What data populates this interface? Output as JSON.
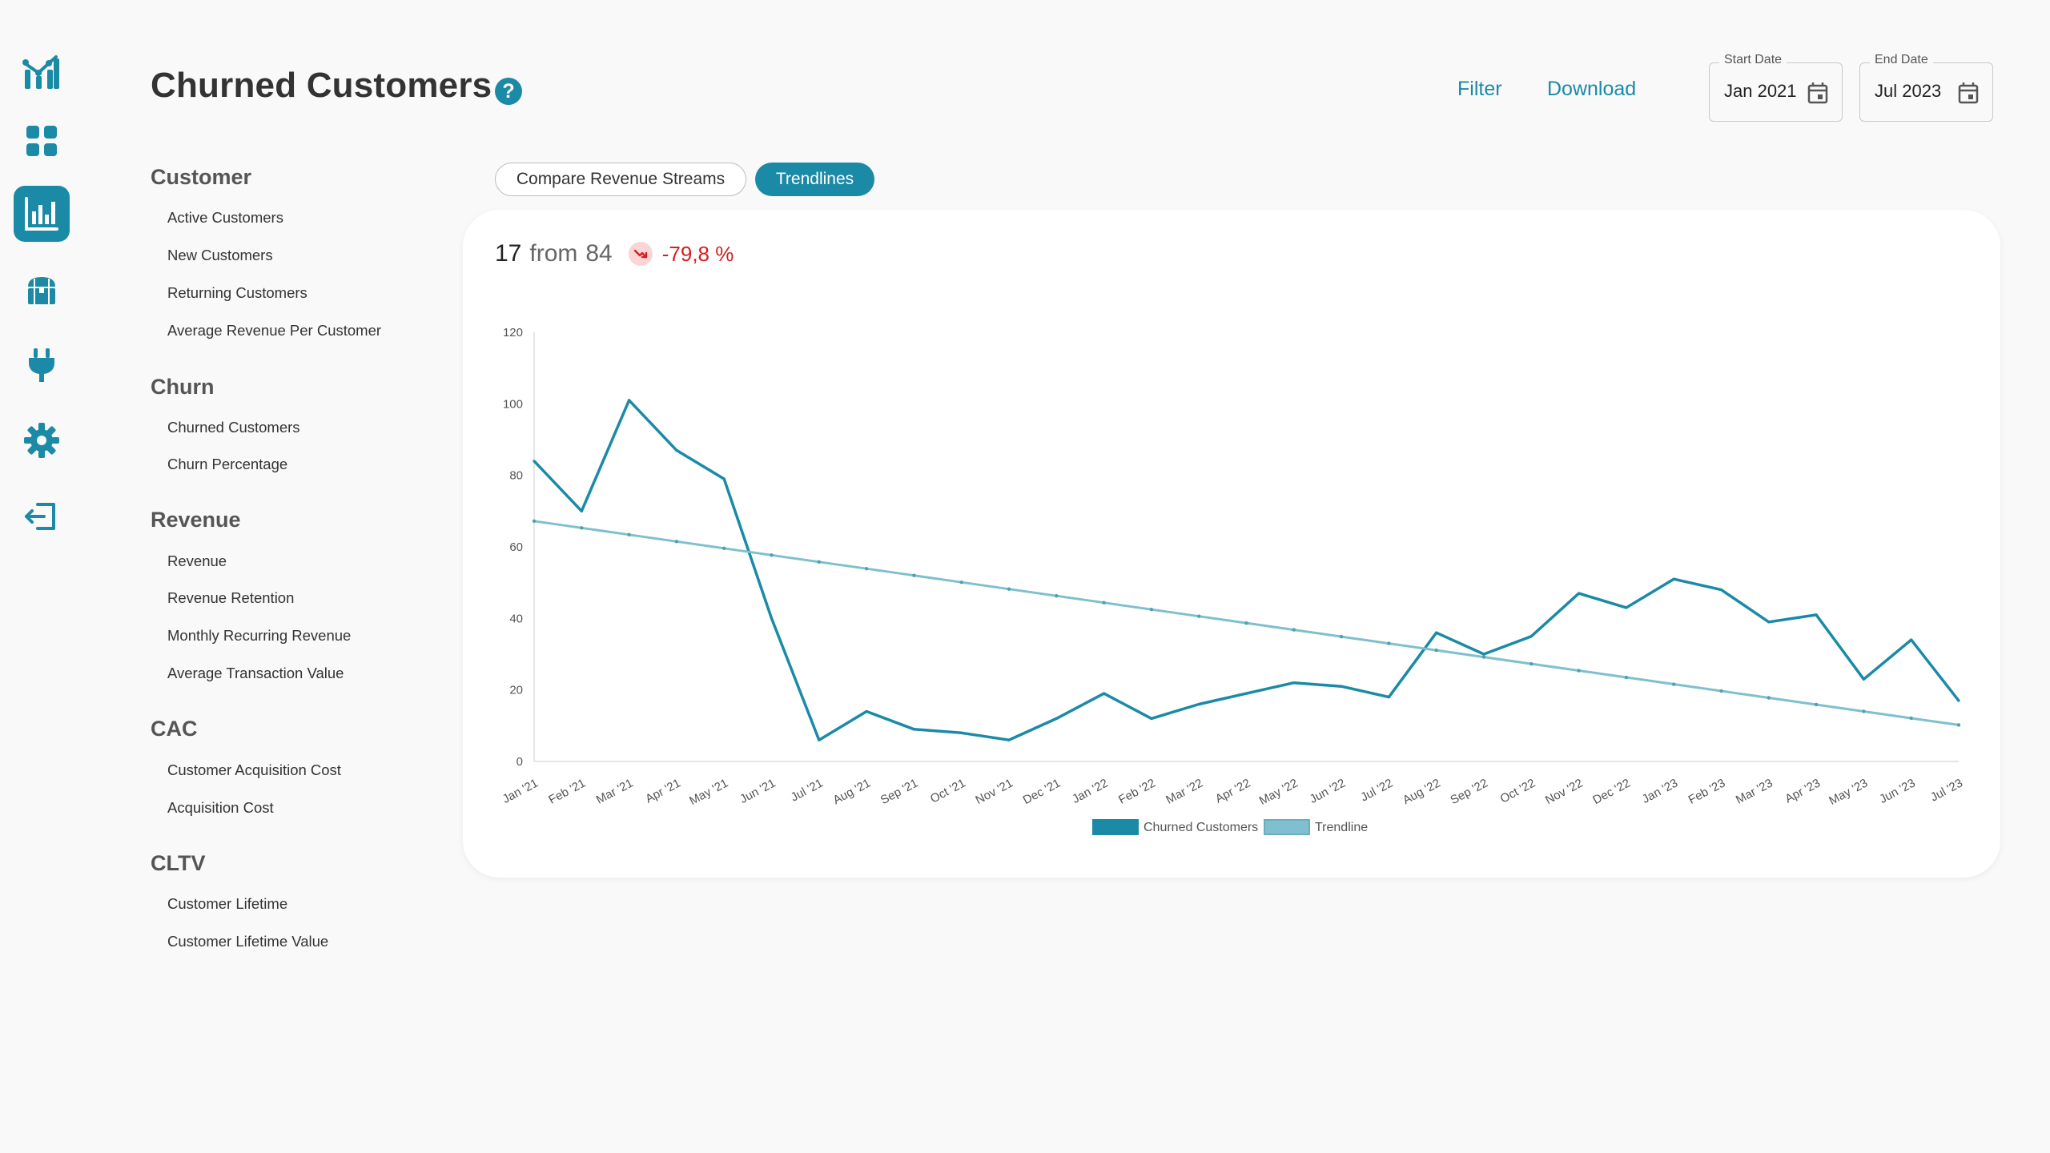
{
  "colors": {
    "accent": "#1a8aa6",
    "trend": "#7fbfcf",
    "negative": "#d32020"
  },
  "rail": {
    "items": [
      {
        "icon": "logo-icon",
        "active": false
      },
      {
        "icon": "dashboard-icon",
        "active": false
      },
      {
        "icon": "bar-chart-icon",
        "active": true
      },
      {
        "icon": "treasure-chest-icon",
        "active": false
      },
      {
        "icon": "plug-icon",
        "active": false
      },
      {
        "icon": "gear-icon",
        "active": false
      },
      {
        "icon": "logout-icon",
        "active": false
      }
    ]
  },
  "header": {
    "title": "Churned Customers",
    "help_icon": "?",
    "filter_label": "Filter",
    "download_label": "Download",
    "start_date": {
      "label": "Start Date",
      "value": "Jan 2021"
    },
    "end_date": {
      "label": "End Date",
      "value": "Jul 2023"
    }
  },
  "nav": {
    "customer": {
      "title": "Customer",
      "items": [
        "Active Customers",
        "New Customers",
        "Returning Customers",
        "Average Revenue Per Customer"
      ]
    },
    "churn": {
      "title": "Churn",
      "items": [
        "Churned Customers",
        "Churn Percentage"
      ]
    },
    "revenue": {
      "title": "Revenue",
      "items": [
        "Revenue",
        "Revenue Retention",
        "Monthly Recurring Revenue",
        "Average Transaction Value"
      ]
    },
    "cac": {
      "title": "CAC",
      "items": [
        "Customer Acquisition Cost",
        "Acquisition Cost"
      ]
    },
    "cltv": {
      "title": "CLTV",
      "items": [
        "Customer Lifetime",
        "Customer Lifetime Value"
      ]
    }
  },
  "tabs": {
    "compare_label": "Compare Revenue Streams",
    "trendlines_label": "Trendlines",
    "active": "trendlines"
  },
  "summary": {
    "current": "17",
    "from_label": "from",
    "previous": "84",
    "change": "-79,8 %"
  },
  "chart_data": {
    "type": "line",
    "categories": [
      "Jan '21",
      "Feb '21",
      "Mar '21",
      "Apr '21",
      "May '21",
      "Jun '21",
      "Jul '21",
      "Aug '21",
      "Sep '21",
      "Oct '21",
      "Nov '21",
      "Dec '21",
      "Jan '22",
      "Feb '22",
      "Mar '22",
      "Apr '22",
      "May '22",
      "Jun '22",
      "Jul '22",
      "Aug '22",
      "Sep '22",
      "Oct '22",
      "Nov '22",
      "Dec '22",
      "Jan '23",
      "Feb '23",
      "Mar '23",
      "Apr '23",
      "May '23",
      "Jun '23",
      "Jul '23"
    ],
    "series": [
      {
        "name": "Churned Customers",
        "color": "#1a8aa6",
        "values": [
          84,
          70,
          101,
          87,
          79,
          40,
          6,
          14,
          9,
          8,
          6,
          12,
          19,
          12,
          16,
          19,
          22,
          21,
          18,
          36,
          30,
          35,
          47,
          43,
          51,
          48,
          39,
          41,
          23,
          34,
          17
        ]
      },
      {
        "name": "Trendline",
        "color": "#7fbfcf",
        "values": [
          67.2,
          65.3,
          63.4,
          61.5,
          59.6,
          57.7,
          55.8,
          53.9,
          52.0,
          50.1,
          48.2,
          46.3,
          44.4,
          42.5,
          40.6,
          38.7,
          36.8,
          34.9,
          33.0,
          31.1,
          29.2,
          27.3,
          25.4,
          23.5,
          21.6,
          19.7,
          17.8,
          15.9,
          14.0,
          12.1,
          10.2
        ]
      }
    ],
    "yticks": [
      0,
      20,
      40,
      60,
      80,
      100,
      120
    ],
    "ylim": [
      0,
      120
    ],
    "legend": "bottom-center"
  }
}
